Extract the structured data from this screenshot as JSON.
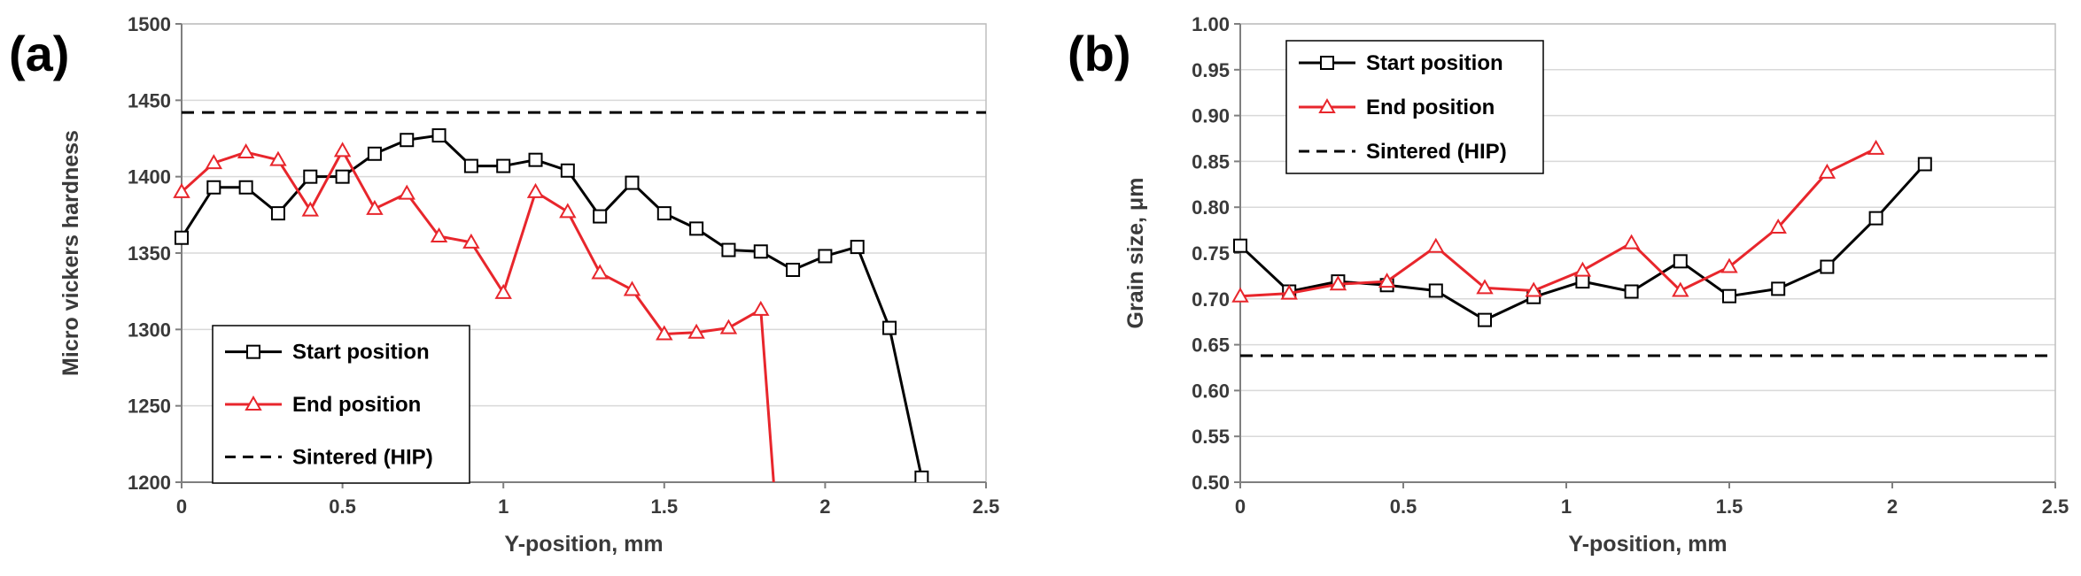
{
  "chart_data": [
    {
      "type": "line",
      "panel_label": "(a)",
      "title": "",
      "xlabel": "Y-position, mm",
      "ylabel": "Micro vickers hardness",
      "xlim": [
        0,
        2.5
      ],
      "ylim": [
        1200,
        1500
      ],
      "xticks": [
        0,
        0.5,
        1,
        1.5,
        2,
        2.5
      ],
      "xtick_labels": [
        "0",
        "0.5",
        "1",
        "1.5",
        "2",
        "2.5"
      ],
      "yticks": [
        1200,
        1250,
        1300,
        1350,
        1400,
        1450,
        1500
      ],
      "ytick_labels": [
        "1200",
        "1250",
        "1300",
        "1350",
        "1400",
        "1450",
        "1500"
      ],
      "grid": "horizontal",
      "legend_position": "bottom-left",
      "series": [
        {
          "name": "Start position",
          "color": "#000000",
          "marker": "square",
          "x": [
            0,
            0.1,
            0.2,
            0.3,
            0.4,
            0.5,
            0.6,
            0.7,
            0.8,
            0.9,
            1.0,
            1.1,
            1.2,
            1.3,
            1.4,
            1.5,
            1.6,
            1.7,
            1.8,
            1.9,
            2.0,
            2.1,
            2.2,
            2.3
          ],
          "y": [
            1360,
            1393,
            1393,
            1376,
            1400,
            1400,
            1415,
            1424,
            1427,
            1407,
            1407,
            1411,
            1404,
            1374,
            1396,
            1376,
            1366,
            1352,
            1351,
            1339,
            1348,
            1354,
            1301,
            1203
          ]
        },
        {
          "name": "End position",
          "color": "#e8262c",
          "marker": "triangle",
          "x": [
            0,
            0.1,
            0.2,
            0.3,
            0.4,
            0.5,
            0.6,
            0.7,
            0.8,
            0.9,
            1.0,
            1.1,
            1.2,
            1.3,
            1.4,
            1.5,
            1.6,
            1.7,
            1.8
          ],
          "y": [
            1390,
            1409,
            1416,
            1411,
            1378,
            1417,
            1379,
            1389,
            1361,
            1357,
            1324,
            1390,
            1377,
            1337,
            1326,
            1297,
            1298,
            1301,
            1313
          ],
          "line_tail": {
            "x": 1.84,
            "y": 1200
          }
        },
        {
          "name": "Sintered (HIP)",
          "color": "#000000",
          "style": "dashed",
          "constant": 1442
        }
      ]
    },
    {
      "type": "line",
      "panel_label": "(b)",
      "title": "",
      "xlabel": "Y-position, mm",
      "ylabel": "Grain size, μm",
      "xlim": [
        0,
        2.5
      ],
      "ylim": [
        0.5,
        1.0
      ],
      "xticks": [
        0,
        0.5,
        1,
        1.5,
        2,
        2.5
      ],
      "xtick_labels": [
        "0",
        "0.5",
        "1",
        "1.5",
        "2",
        "2.5"
      ],
      "yticks": [
        0.5,
        0.55,
        0.6,
        0.65,
        0.7,
        0.75,
        0.8,
        0.85,
        0.9,
        0.95,
        1.0
      ],
      "ytick_labels": [
        "0.50",
        "0.55",
        "0.60",
        "0.65",
        "0.70",
        "0.75",
        "0.80",
        "0.85",
        "0.90",
        "0.95",
        "1.00"
      ],
      "grid": "horizontal",
      "legend_position": "top-left",
      "series": [
        {
          "name": "Start position",
          "color": "#000000",
          "marker": "square",
          "x": [
            0,
            0.15,
            0.3,
            0.45,
            0.6,
            0.75,
            0.9,
            1.05,
            1.2,
            1.35,
            1.5,
            1.65,
            1.8,
            1.95,
            2.1
          ],
          "y": [
            0.758,
            0.708,
            0.719,
            0.715,
            0.709,
            0.677,
            0.702,
            0.719,
            0.708,
            0.741,
            0.703,
            0.711,
            0.735,
            0.788,
            0.847
          ]
        },
        {
          "name": "End position",
          "color": "#e8262c",
          "marker": "triangle",
          "x": [
            0,
            0.15,
            0.3,
            0.45,
            0.6,
            0.75,
            0.9,
            1.05,
            1.2,
            1.35,
            1.5,
            1.65,
            1.8,
            1.95
          ],
          "y": [
            0.703,
            0.706,
            0.716,
            0.719,
            0.757,
            0.712,
            0.709,
            0.731,
            0.761,
            0.709,
            0.735,
            0.778,
            0.838,
            0.864
          ]
        },
        {
          "name": "Sintered (HIP)",
          "color": "#000000",
          "style": "dashed",
          "constant": 0.638
        }
      ]
    }
  ]
}
